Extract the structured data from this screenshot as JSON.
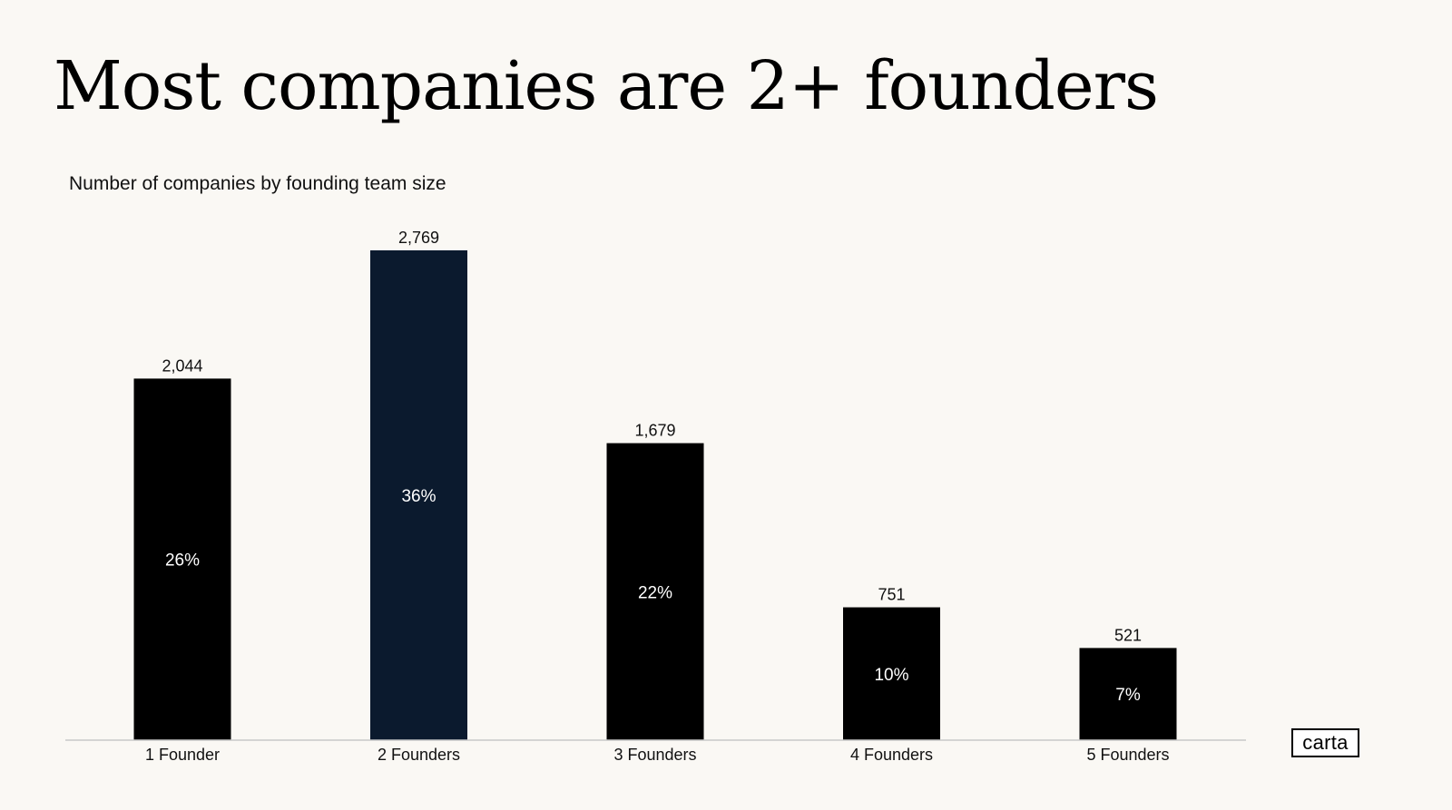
{
  "slide": {
    "title": "Most companies are 2+ founders",
    "logo_text": "carta"
  },
  "chart_data": {
    "type": "bar",
    "title": "Number of companies by founding team size",
    "categories": [
      "1 Founder",
      "2 Founders",
      "3 Founders",
      "4 Founders",
      "5 Founders"
    ],
    "values": [
      2044,
      2769,
      1679,
      751,
      521
    ],
    "value_labels": [
      "2,044",
      "2,769",
      "1,679",
      "751",
      "521"
    ],
    "percent_labels": [
      "26%",
      "36%",
      "22%",
      "10%",
      "7%"
    ],
    "highlight_index": 1,
    "colors": {
      "bar": "#000000",
      "highlight": "#0b1a2e",
      "axis": "#c8c8c8",
      "background": "#faf8f4"
    },
    "ylim": [
      0,
      2769
    ],
    "grid": false,
    "legend": "none"
  }
}
